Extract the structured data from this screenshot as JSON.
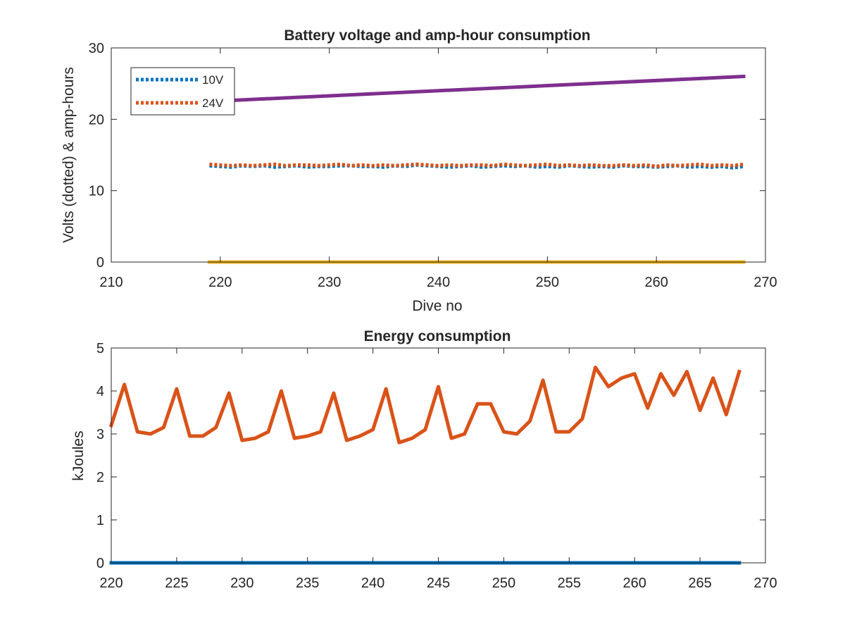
{
  "chart_data": [
    {
      "type": "line",
      "title": "Battery voltage and amp-hour consumption",
      "xlabel": "Dive no",
      "ylabel": "Volts (dotted) & amp-hours",
      "xlim": [
        210,
        270
      ],
      "ylim": [
        0,
        30
      ],
      "xticks": [
        "210",
        "220",
        "230",
        "240",
        "250",
        "260",
        "270"
      ],
      "yticks": [
        "0",
        "10",
        "20",
        "30"
      ],
      "legend_position": "top-left",
      "grid": false,
      "series": [
        {
          "name": "10V",
          "style": "dotted",
          "color": "#0072BD",
          "x": [
            219,
            220,
            221,
            222,
            223,
            224,
            225,
            226,
            227,
            228,
            229,
            230,
            231,
            232,
            233,
            234,
            235,
            236,
            237,
            238,
            239,
            240,
            241,
            242,
            243,
            244,
            245,
            246,
            247,
            248,
            249,
            250,
            251,
            252,
            253,
            254,
            255,
            256,
            257,
            258,
            259,
            260,
            261,
            262,
            263,
            264,
            265,
            266,
            267,
            268
          ],
          "y": [
            13.5,
            13.4,
            13.3,
            13.5,
            13.4,
            13.5,
            13.3,
            13.4,
            13.5,
            13.3,
            13.4,
            13.4,
            13.5,
            13.5,
            13.4,
            13.4,
            13.3,
            13.5,
            13.4,
            13.6,
            13.5,
            13.4,
            13.3,
            13.4,
            13.5,
            13.3,
            13.4,
            13.5,
            13.4,
            13.5,
            13.3,
            13.4,
            13.3,
            13.5,
            13.4,
            13.3,
            13.4,
            13.3,
            13.5,
            13.4,
            13.4,
            13.3,
            13.4,
            13.5,
            13.3,
            13.4,
            13.3,
            13.4,
            13.2,
            13.4
          ]
        },
        {
          "name": "24V",
          "style": "dotted",
          "color": "#D95319",
          "x": [
            219,
            220,
            221,
            222,
            223,
            224,
            225,
            226,
            227,
            228,
            229,
            230,
            231,
            232,
            233,
            234,
            235,
            236,
            237,
            238,
            239,
            240,
            241,
            242,
            243,
            244,
            245,
            246,
            247,
            248,
            249,
            250,
            251,
            252,
            253,
            254,
            255,
            256,
            257,
            258,
            259,
            260,
            261,
            262,
            263,
            264,
            265,
            266,
            267,
            268
          ],
          "y": [
            13.7,
            13.6,
            13.5,
            13.6,
            13.5,
            13.6,
            13.7,
            13.5,
            13.6,
            13.6,
            13.5,
            13.6,
            13.7,
            13.5,
            13.6,
            13.5,
            13.6,
            13.5,
            13.6,
            13.7,
            13.6,
            13.5,
            13.6,
            13.5,
            13.6,
            13.6,
            13.5,
            13.7,
            13.6,
            13.5,
            13.6,
            13.7,
            13.5,
            13.6,
            13.5,
            13.6,
            13.5,
            13.5,
            13.6,
            13.5,
            13.6,
            13.4,
            13.6,
            13.5,
            13.6,
            13.7,
            13.5,
            13.6,
            13.5,
            13.7
          ]
        },
        {
          "style": "solid",
          "color": "#7E2F8E",
          "x": [
            219,
            268
          ],
          "y": [
            22.5,
            26.0
          ]
        },
        {
          "style": "solid",
          "color": "#EDB120",
          "x": [
            219,
            268
          ],
          "y": [
            0,
            0
          ]
        }
      ]
    },
    {
      "type": "line",
      "title": "Energy consumption",
      "xlabel": "",
      "ylabel": "kJoules",
      "xlim": [
        220,
        270
      ],
      "ylim": [
        0,
        5
      ],
      "xticks": [
        "220",
        "225",
        "230",
        "235",
        "240",
        "245",
        "250",
        "255",
        "260",
        "265",
        "270"
      ],
      "yticks": [
        "0",
        "1",
        "2",
        "3",
        "4",
        "5"
      ],
      "grid": false,
      "series": [
        {
          "style": "solid",
          "color": "#D95319",
          "x": [
            220,
            221,
            222,
            223,
            224,
            225,
            226,
            227,
            228,
            229,
            230,
            231,
            232,
            233,
            234,
            235,
            236,
            237,
            238,
            239,
            240,
            241,
            242,
            243,
            244,
            245,
            246,
            247,
            248,
            249,
            250,
            251,
            252,
            253,
            254,
            255,
            256,
            257,
            258,
            259,
            260,
            261,
            262,
            263,
            264,
            265,
            266,
            267,
            268
          ],
          "y": [
            3.2,
            4.15,
            3.05,
            3.0,
            3.15,
            4.05,
            2.95,
            2.95,
            3.15,
            3.95,
            2.85,
            2.9,
            3.05,
            4.0,
            2.9,
            2.95,
            3.05,
            3.95,
            2.85,
            2.95,
            3.1,
            4.05,
            2.8,
            2.9,
            3.1,
            4.1,
            2.9,
            3.0,
            3.7,
            3.7,
            3.05,
            3.0,
            3.3,
            4.25,
            3.05,
            3.05,
            3.35,
            4.55,
            4.1,
            4.3,
            4.4,
            3.6,
            4.4,
            3.9,
            4.45,
            3.55,
            4.3,
            3.45,
            4.45
          ]
        },
        {
          "style": "solid",
          "color": "#0072BD",
          "x": [
            220,
            268
          ],
          "y": [
            0,
            0
          ]
        }
      ]
    }
  ]
}
